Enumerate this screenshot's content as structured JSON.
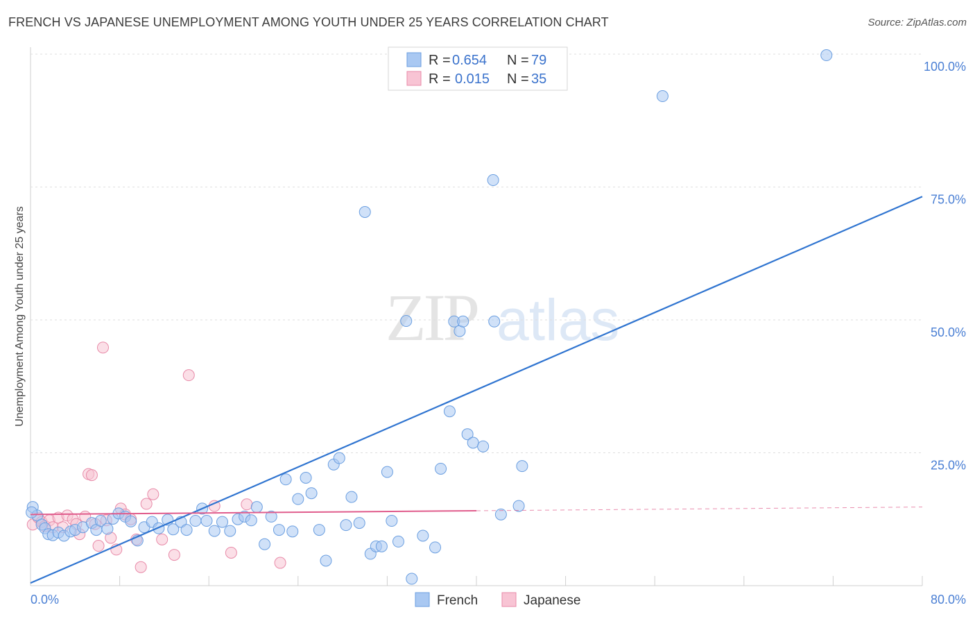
{
  "title": "FRENCH VS JAPANESE UNEMPLOYMENT AMONG YOUTH UNDER 25 YEARS CORRELATION CHART",
  "source": "Source: ZipAtlas.com",
  "watermark": {
    "zip": "ZIP",
    "atlas": "atlas"
  },
  "legend_top": [
    {
      "r_label": "R =",
      "r_value": "0.654",
      "n_label": "N =",
      "n_value": "79",
      "color": "#a9c8f2",
      "stroke": "#6a9ee0"
    },
    {
      "r_label": "R =",
      "r_value": "0.015",
      "n_label": "N =",
      "n_value": "35",
      "color": "#f8c4d4",
      "stroke": "#e88aa8"
    }
  ],
  "chart_data": {
    "type": "scatter",
    "title": "FRENCH VS JAPANESE UNEMPLOYMENT AMONG YOUTH UNDER 25 YEARS CORRELATION CHART",
    "xlabel": "",
    "ylabel": "Unemployment Among Youth under 25 years",
    "xlim": [
      0,
      80
    ],
    "ylim": [
      0,
      100
    ],
    "x_tick_labels": [
      "0.0%",
      "80.0%"
    ],
    "y_ticks": [
      25,
      50,
      75,
      100
    ],
    "y_tick_labels": [
      "25.0%",
      "50.0%",
      "75.0%",
      "100.0%"
    ],
    "series": [
      {
        "name": "French",
        "color": "#a9c8f2",
        "stroke": "#6a9ee0",
        "trend": {
          "x": [
            0,
            80
          ],
          "y": [
            0.5,
            73.2
          ],
          "color": "#2f74d0"
        },
        "points": [
          [
            0.2,
            14.8
          ],
          [
            0.6,
            13.2
          ],
          [
            1.0,
            11.5
          ],
          [
            1.3,
            10.8
          ],
          [
            1.6,
            9.7
          ],
          [
            2.0,
            9.5
          ],
          [
            2.5,
            10.0
          ],
          [
            3.0,
            9.4
          ],
          [
            3.6,
            10.2
          ],
          [
            4.0,
            10.5
          ],
          [
            4.7,
            11.0
          ],
          [
            5.5,
            11.8
          ],
          [
            5.9,
            10.5
          ],
          [
            6.3,
            12.2
          ],
          [
            6.9,
            10.7
          ],
          [
            7.4,
            12.6
          ],
          [
            7.9,
            13.6
          ],
          [
            8.5,
            13.0
          ],
          [
            9.0,
            12.1
          ],
          [
            9.6,
            8.5
          ],
          [
            10.2,
            11.0
          ],
          [
            10.9,
            12.0
          ],
          [
            11.5,
            10.8
          ],
          [
            12.3,
            12.4
          ],
          [
            12.8,
            10.6
          ],
          [
            13.5,
            12.0
          ],
          [
            14.0,
            10.5
          ],
          [
            14.8,
            12.2
          ],
          [
            15.4,
            14.5
          ],
          [
            15.8,
            12.2
          ],
          [
            16.5,
            10.3
          ],
          [
            17.2,
            12.0
          ],
          [
            17.9,
            10.3
          ],
          [
            18.6,
            12.5
          ],
          [
            19.2,
            13.0
          ],
          [
            19.8,
            12.3
          ],
          [
            20.3,
            14.8
          ],
          [
            21.0,
            7.8
          ],
          [
            21.6,
            13.0
          ],
          [
            22.3,
            10.5
          ],
          [
            22.9,
            20.0
          ],
          [
            23.5,
            10.2
          ],
          [
            24.0,
            16.3
          ],
          [
            24.7,
            20.3
          ],
          [
            25.2,
            17.4
          ],
          [
            25.9,
            10.5
          ],
          [
            26.5,
            4.7
          ],
          [
            27.2,
            22.8
          ],
          [
            27.7,
            24.0
          ],
          [
            28.3,
            11.4
          ],
          [
            28.8,
            16.7
          ],
          [
            29.5,
            11.8
          ],
          [
            30.0,
            70.3
          ],
          [
            30.5,
            6.0
          ],
          [
            31.0,
            7.4
          ],
          [
            31.5,
            7.4
          ],
          [
            32.0,
            21.4
          ],
          [
            32.4,
            12.2
          ],
          [
            33.0,
            8.3
          ],
          [
            33.7,
            49.8
          ],
          [
            34.2,
            1.3
          ],
          [
            35.2,
            9.4
          ],
          [
            36.3,
            7.2
          ],
          [
            36.8,
            22.0
          ],
          [
            37.6,
            32.8
          ],
          [
            38.0,
            49.7
          ],
          [
            38.5,
            47.9
          ],
          [
            38.8,
            49.7
          ],
          [
            39.2,
            28.5
          ],
          [
            39.7,
            26.9
          ],
          [
            40.6,
            26.2
          ],
          [
            41.5,
            76.3
          ],
          [
            41.6,
            49.7
          ],
          [
            42.2,
            13.4
          ],
          [
            43.8,
            15.0
          ],
          [
            44.1,
            22.5
          ],
          [
            56.7,
            92.1
          ],
          [
            71.4,
            99.8
          ],
          [
            0.1,
            13.8
          ]
        ]
      },
      {
        "name": "Japanese",
        "color": "#f8c4d4",
        "stroke": "#e88aa8",
        "trend": {
          "x": [
            0,
            80
          ],
          "y": [
            13.4,
            14.8
          ],
          "solid_until": 40,
          "color": "#e05c8c"
        },
        "points": [
          [
            0.2,
            11.5
          ],
          [
            0.7,
            12.8
          ],
          [
            1.0,
            12.0
          ],
          [
            1.3,
            11.2
          ],
          [
            1.7,
            12.3
          ],
          [
            2.0,
            11.0
          ],
          [
            2.5,
            12.8
          ],
          [
            2.9,
            11.0
          ],
          [
            3.3,
            13.2
          ],
          [
            3.8,
            12.5
          ],
          [
            4.1,
            11.6
          ],
          [
            4.4,
            9.7
          ],
          [
            4.9,
            13.0
          ],
          [
            5.2,
            21.0
          ],
          [
            5.5,
            20.8
          ],
          [
            5.8,
            11.6
          ],
          [
            6.1,
            7.5
          ],
          [
            6.5,
            44.8
          ],
          [
            6.8,
            12.3
          ],
          [
            7.2,
            9.0
          ],
          [
            7.7,
            6.8
          ],
          [
            8.1,
            14.5
          ],
          [
            8.5,
            13.4
          ],
          [
            9.0,
            12.5
          ],
          [
            9.5,
            8.7
          ],
          [
            9.9,
            3.5
          ],
          [
            10.4,
            15.4
          ],
          [
            11.0,
            17.2
          ],
          [
            11.8,
            8.7
          ],
          [
            12.9,
            5.8
          ],
          [
            14.2,
            39.6
          ],
          [
            16.5,
            15.0
          ],
          [
            18.0,
            6.2
          ],
          [
            19.4,
            15.3
          ],
          [
            22.4,
            4.3
          ]
        ]
      }
    ],
    "legend": [
      "French",
      "Japanese"
    ]
  }
}
